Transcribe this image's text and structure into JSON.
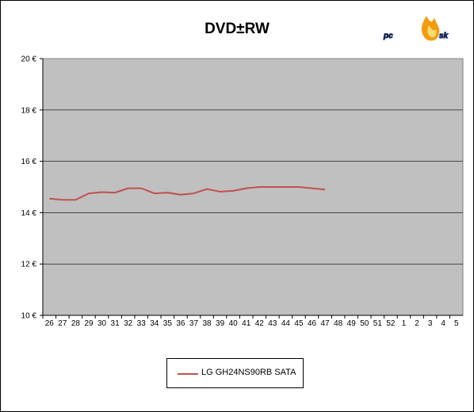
{
  "title": "DVD±RW",
  "logo_text": "pcosk",
  "chart_data": {
    "type": "line",
    "title": "DVD±RW",
    "categories": [
      "26",
      "27",
      "28",
      "29",
      "30",
      "31",
      "32",
      "33",
      "34",
      "35",
      "36",
      "37",
      "38",
      "39",
      "40",
      "41",
      "42",
      "43",
      "44",
      "45",
      "46",
      "47",
      "48",
      "49",
      "50",
      "51",
      "52",
      "1",
      "2",
      "3",
      "4",
      "5"
    ],
    "y_tick_labels": [
      "10 €",
      "12 €",
      "14 €",
      "16 €",
      "18 €",
      "20 €"
    ],
    "ylim": [
      10,
      20
    ],
    "grid": true,
    "legend_position": "bottom",
    "series": [
      {
        "name": "LG GH24NS90RB SATA",
        "color": "#c0504d",
        "values": [
          14.55,
          14.5,
          14.5,
          14.75,
          14.8,
          14.78,
          14.95,
          14.95,
          14.75,
          14.78,
          14.7,
          14.75,
          14.92,
          14.82,
          14.85,
          14.95,
          15.0,
          15.0,
          15.0,
          15.0,
          14.95,
          14.9,
          null,
          null,
          null,
          null,
          null,
          null,
          null,
          null,
          null,
          null
        ]
      }
    ]
  },
  "colors": {
    "plot_background": "#c0c0c0",
    "gridline": "#000000",
    "series": "#c0504d"
  }
}
